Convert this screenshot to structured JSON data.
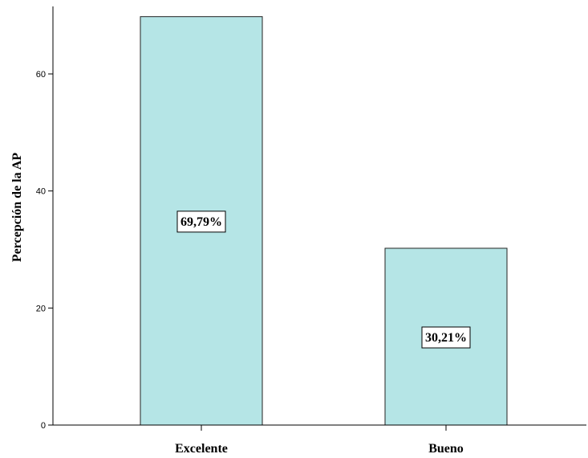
{
  "chart_data": {
    "type": "bar",
    "categories": [
      "Excelente",
      "Bueno"
    ],
    "values": [
      69.79,
      30.21
    ],
    "data_labels": [
      "69,79%",
      "30,21%"
    ],
    "ylabel": "Percepción de la AP",
    "xlabel": "",
    "ylim": [
      0,
      72
    ],
    "yticks": [
      0,
      20,
      40,
      60
    ],
    "ytick_labels": [
      "0",
      "20",
      "40",
      "60"
    ],
    "grid": false,
    "legend": "none",
    "colors": {
      "bar_fill": "#b5e5e6",
      "bar_stroke": "#222222",
      "axis": "#000000",
      "label_box_fill": "#ffffff",
      "label_box_stroke": "#000000"
    }
  }
}
